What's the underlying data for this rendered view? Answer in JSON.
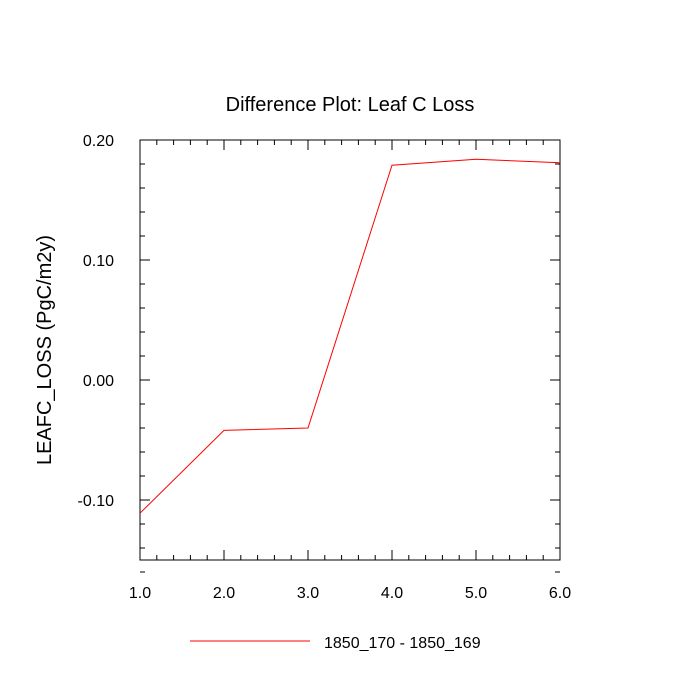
{
  "chart_data": {
    "type": "line",
    "title": "Difference Plot: Leaf C Loss",
    "xlabel": "",
    "ylabel": "LEAFC_LOSS  (PgC/m2y)",
    "xlim": [
      1.0,
      6.0
    ],
    "ylim": [
      -0.15,
      0.2
    ],
    "x_ticks": [
      "1.0",
      "2.0",
      "3.0",
      "4.0",
      "5.0",
      "6.0"
    ],
    "y_ticks": [
      "0.20",
      "0.10",
      "0.00",
      "-0.10"
    ],
    "grid": false,
    "legend_position": "bottom",
    "series": [
      {
        "name": "1850_170 - 1850_169",
        "color": "#ff0000",
        "x": [
          1.0,
          2.0,
          3.0,
          4.0,
          5.0,
          6.0
        ],
        "y": [
          -0.111,
          -0.042,
          -0.04,
          0.179,
          0.184,
          0.181
        ]
      }
    ]
  }
}
